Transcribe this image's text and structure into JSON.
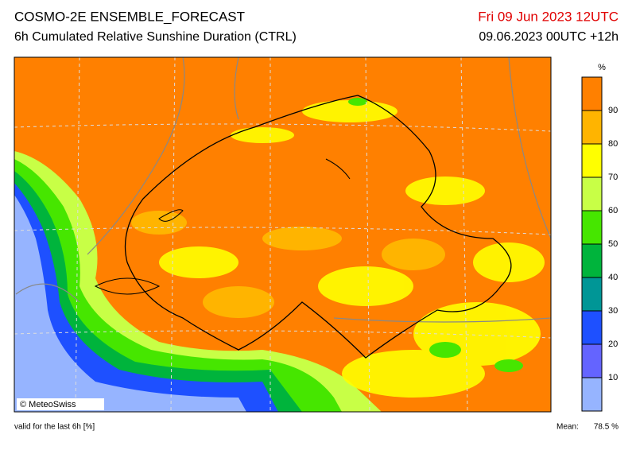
{
  "header": {
    "title": "COSMO-2E ENSEMBLE_FORECAST",
    "subtitle": "6h Cumulated Relative Sunshine Duration (CTRL)",
    "valid_time": "Fri 09 Jun 2023 12UTC",
    "run": "09.06.2023 00UTC +12h"
  },
  "credit": "© MeteoSwiss",
  "legend": {
    "unit": "%",
    "lim": [
      0,
      100
    ],
    "ticks": [
      10,
      20,
      30,
      40,
      50,
      60,
      70,
      80,
      90
    ],
    "colors": [
      "#96b4ff",
      "#6464ff",
      "#1e50ff",
      "#009696",
      "#00b43c",
      "#46e600",
      "#c8ff46",
      "#ffff00",
      "#ffb400",
      "#ff8000"
    ]
  },
  "footer": {
    "note": "valid for the last 6h [%]",
    "mean_label": "Mean:",
    "mean_value": "78.5 %"
  }
}
